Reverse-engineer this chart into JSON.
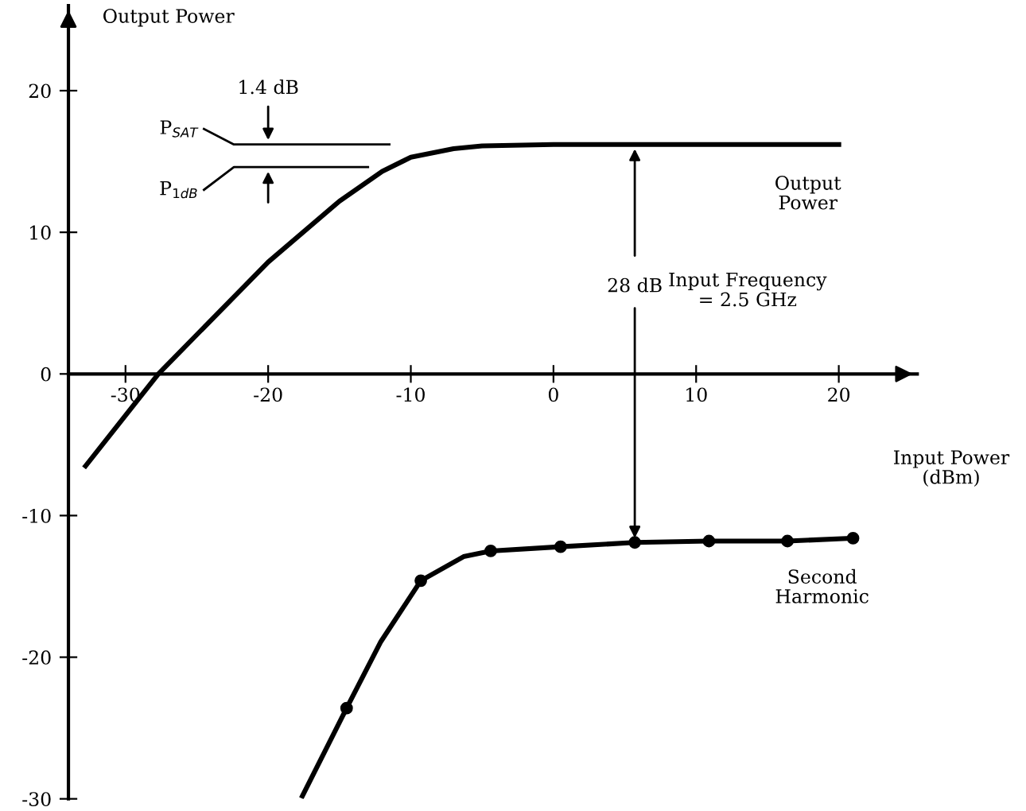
{
  "chart_data": {
    "type": "line",
    "xlabel": "Input Power\n(dBm)",
    "ylabel": "Output Power",
    "xlim": [
      -34,
      25.5
    ],
    "ylim": [
      -30,
      26
    ],
    "xticks": [
      -30,
      -20,
      -10,
      0,
      10,
      20
    ],
    "yticks": [
      -30,
      -20,
      -10,
      0,
      10,
      20
    ],
    "grid": false,
    "legend": false,
    "line_style": "solid",
    "series": [
      {
        "name": "Output\nPower",
        "color": "#000000",
        "marker": "none",
        "x": [
          -32.8,
          -27.7,
          -20,
          -15,
          -12,
          -10,
          -7,
          -5,
          0,
          10,
          20
        ],
        "values": [
          -6.5,
          0,
          7.9,
          12.2,
          14.3,
          15.3,
          15.9,
          16.1,
          16.2,
          16.2,
          16.2
        ]
      },
      {
        "name": "Second\nHarmonic",
        "color": "#000000",
        "marker": "none",
        "x": [
          -17.6,
          -14.5,
          -12.1,
          -9.3,
          -6.3,
          -4.4,
          0.5,
          5.7,
          10.9,
          16.4,
          21
        ],
        "values": [
          -29.8,
          -23.6,
          -18.9,
          -14.6,
          -12.9,
          -12.5,
          -12.2,
          -11.9,
          -11.8,
          -11.8,
          -11.6
        ]
      },
      {
        "type": "scatter",
        "color": "#000000",
        "marker": "circle",
        "x": [
          -14.5,
          -9.3,
          -4.4,
          0.5,
          5.7,
          10.9,
          16.4,
          21
        ],
        "values": [
          -23.6,
          -14.6,
          -12.5,
          -12.2,
          -11.9,
          -11.8,
          -11.8,
          -11.6
        ]
      },
      {
        "color": "#000000",
        "marker": "none",
        "x": [
          -24.5,
          -22.4,
          -11.5
        ],
        "values": [
          17.3,
          16.2,
          16.2
        ]
      },
      {
        "color": "#000000",
        "marker": "none",
        "x": [
          -24.5,
          -22.4,
          -13
        ],
        "values": [
          13.0,
          14.6,
          14.6
        ]
      }
    ],
    "annotations": [
      {
        "text": "P$_{SAT}$",
        "x": -24.5,
        "y": 17.3
      },
      {
        "text": "P$_{1dB}$",
        "x": -24.5,
        "y": 13.0
      },
      {
        "text": "1.4 dB",
        "x": -20,
        "y": 16.2
      },
      {
        "text": "28 dB",
        "x": 5.7,
        "y": 16.2
      },
      "Input Frequency\n= 2.5 GHz"
    ]
  }
}
